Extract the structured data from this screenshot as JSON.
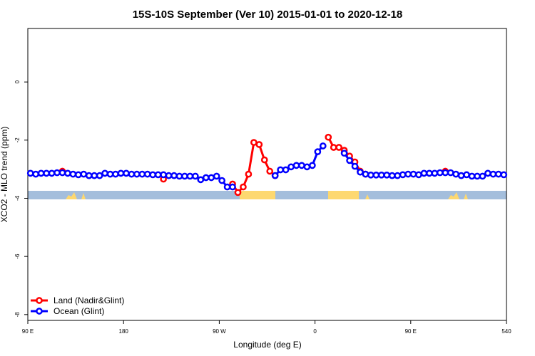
{
  "chart_data": {
    "type": "line",
    "title": "15S-10S September (Ver 10)   2015-01-01 to 2020-12-18",
    "x_label": "Longitude (deg E)",
    "y_label": "XCO2 - MLO trend (ppm)",
    "xlim": [
      90,
      540
    ],
    "xticks": [
      {
        "value": 90,
        "label": "90 E"
      },
      180,
      {
        "value": 270,
        "label": "90 W"
      },
      {
        "value": 360,
        "label": "0"
      },
      {
        "value": 450,
        "label": "90 E"
      },
      540
    ],
    "ylim": [
      -8.2,
      1.84
    ],
    "yticks": [
      0,
      -2,
      -4,
      -6,
      -8
    ],
    "legend": "bottom-left",
    "x": [
      92.5,
      97.5,
      102.5,
      107.5,
      112.5,
      117.5,
      122.5,
      127.5,
      132.5,
      137.5,
      142.5,
      147.5,
      152.5,
      157.5,
      162.5,
      167.5,
      172.5,
      177.5,
      182.5,
      187.5,
      192.5,
      197.5,
      202.5,
      207.5,
      212.5,
      217.5,
      222.5,
      227.5,
      232.5,
      237.5,
      242.5,
      247.5,
      252.5,
      257.5,
      262.5,
      267.5,
      272.5,
      277.5,
      282.5,
      287.5,
      292.5,
      297.5,
      302.5,
      307.5,
      312.5,
      317.5,
      322.5,
      327.5,
      332.5,
      337.5,
      342.5,
      347.5,
      352.5,
      357.5,
      362.5,
      367.5,
      372.5,
      377.5,
      382.5,
      387.5,
      392.5,
      397.5,
      402.5,
      407.5,
      412.5,
      417.5,
      422.5,
      427.5,
      432.5,
      437.5,
      442.5,
      447.5,
      452.5,
      457.5,
      462.5,
      467.5,
      472.5,
      477.5,
      482.5,
      487.5,
      492.5,
      497.5,
      502.5,
      507.5,
      512.5,
      517.5,
      522.5,
      527.5,
      532.5,
      537.5
    ],
    "series": [
      {
        "name": "Land (Nadir&Glint)",
        "color": "#ff0000",
        "values": [
          null,
          null,
          null,
          null,
          null,
          null,
          -3.07,
          null,
          null,
          null,
          null,
          null,
          null,
          null,
          null,
          null,
          null,
          null,
          null,
          null,
          null,
          null,
          null,
          null,
          null,
          -3.34,
          null,
          null,
          null,
          null,
          null,
          null,
          null,
          null,
          null,
          null,
          null,
          null,
          -3.51,
          -3.8,
          -3.61,
          -3.17,
          -2.08,
          -2.15,
          -2.68,
          -3.07,
          -3.22,
          null,
          null,
          null,
          null,
          null,
          null,
          null,
          null,
          null,
          -1.9,
          -2.25,
          -2.25,
          -2.35,
          -2.55,
          -2.75,
          -3.07,
          -3.17,
          null,
          null,
          null,
          null,
          null,
          null,
          null,
          null,
          null,
          null,
          null,
          null,
          null,
          null,
          -3.07,
          null,
          null,
          null,
          null,
          null,
          null,
          null,
          null,
          null,
          null,
          null
        ]
      },
      {
        "name": "Ocean (Glint)",
        "color": "#0000ff",
        "values": [
          -3.14,
          -3.17,
          -3.14,
          -3.14,
          -3.14,
          -3.12,
          -3.12,
          -3.14,
          -3.17,
          -3.19,
          -3.17,
          -3.22,
          -3.22,
          -3.22,
          -3.14,
          -3.17,
          -3.17,
          -3.14,
          -3.14,
          -3.17,
          -3.17,
          -3.17,
          -3.17,
          -3.19,
          -3.19,
          -3.19,
          -3.22,
          -3.22,
          -3.24,
          -3.24,
          -3.24,
          -3.24,
          -3.36,
          -3.29,
          -3.29,
          -3.24,
          -3.39,
          -3.61,
          -3.61,
          null,
          null,
          null,
          null,
          null,
          null,
          null,
          -3.22,
          -3.02,
          -3.02,
          -2.92,
          -2.87,
          -2.87,
          -2.92,
          -2.87,
          -2.4,
          -2.2,
          null,
          null,
          null,
          -2.45,
          -2.7,
          -2.9,
          -3.1,
          -3.17,
          -3.2,
          -3.2,
          -3.2,
          -3.2,
          -3.22,
          -3.22,
          -3.19,
          -3.17,
          -3.17,
          -3.19,
          -3.14,
          -3.14,
          -3.14,
          -3.12,
          -3.12,
          -3.12,
          -3.17,
          -3.22,
          -3.19,
          -3.24,
          -3.24,
          -3.24,
          -3.14,
          -3.17,
          -3.17,
          -3.19
        ]
      }
    ]
  }
}
